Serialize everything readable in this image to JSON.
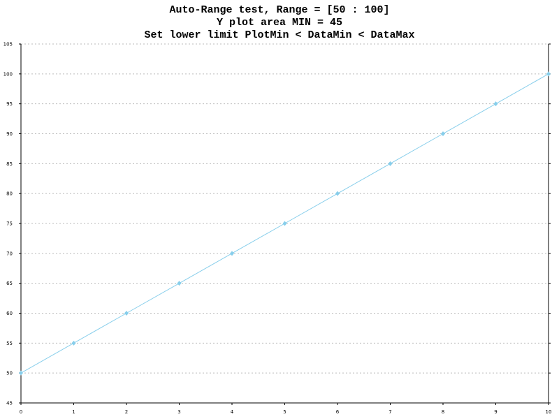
{
  "chart_data": {
    "type": "line",
    "title": [
      "Auto-Range test, Range = [50 : 100]",
      "Y plot area MIN = 45",
      "Set lower limit PlotMin < DataMin < DataMax"
    ],
    "x": [
      0,
      1,
      2,
      3,
      4,
      5,
      6,
      7,
      8,
      9,
      10
    ],
    "series": [
      {
        "color": "#87ceeb",
        "values": [
          50,
          55,
          60,
          65,
          70,
          75,
          80,
          85,
          90,
          95,
          100
        ]
      }
    ],
    "xlim": [
      0,
      10
    ],
    "xticks": [
      0,
      1,
      2,
      3,
      4,
      5,
      6,
      7,
      8,
      9,
      10
    ],
    "ylim": [
      45,
      105
    ],
    "yticks": [
      45,
      50,
      55,
      60,
      65,
      70,
      75,
      80,
      85,
      90,
      95,
      100,
      105
    ],
    "grid": true
  }
}
